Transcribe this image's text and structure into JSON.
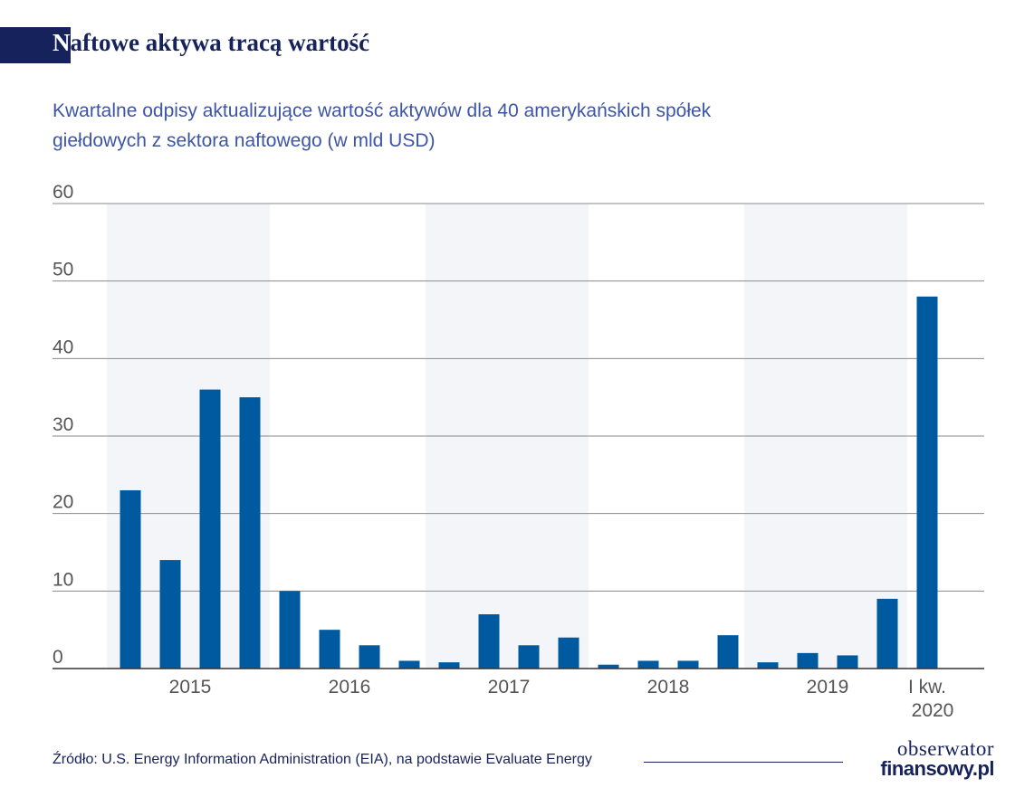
{
  "title": "Naftowe aktywa tracą wartość",
  "subtitle": "Kwartalne odpisy aktualizujące wartość aktywów dla 40 amerykańskich spółek giełdowych z sektora naftowego (w mld USD)",
  "source": "Źródło: U.S. Energy Information Administration (EIA), na podstawie Evaluate Energy",
  "logo": {
    "line1": "obserwator",
    "line2": "finansowy.pl"
  },
  "colors": {
    "bar": "#005aa0",
    "title": "#16225b",
    "subtitle": "#3d55a5",
    "band": "#f4f5f8",
    "grid": "#8a8a8a",
    "axis_text": "#555555"
  },
  "chart_data": {
    "type": "bar",
    "title": "",
    "xlabel": "",
    "ylabel": "",
    "ylim": [
      0,
      60
    ],
    "yticks": [
      0,
      10,
      20,
      30,
      40,
      50,
      60
    ],
    "grid": true,
    "year_groups": [
      {
        "label": "2015",
        "quarters": 4,
        "shaded": true
      },
      {
        "label": "2016",
        "quarters": 4,
        "shaded": false
      },
      {
        "label": "2017",
        "quarters": 4,
        "shaded": true
      },
      {
        "label": "2018",
        "quarters": 4,
        "shaded": false
      },
      {
        "label": "2019",
        "quarters": 4,
        "shaded": true
      },
      {
        "label": "I kw. 2020",
        "quarters": 1,
        "shaded": false
      }
    ],
    "values": [
      23,
      14,
      36,
      35,
      10,
      5,
      3,
      1,
      0.8,
      7,
      3,
      4,
      0.5,
      1,
      1,
      4.3,
      0.8,
      2,
      1.7,
      9,
      48
    ]
  }
}
